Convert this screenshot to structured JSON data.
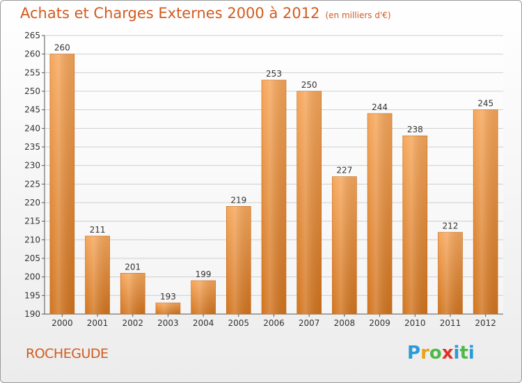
{
  "header": {
    "title": "Achats et Charges Externes 2000 à 2012",
    "unit": "(en milliers d'€)"
  },
  "footer": {
    "municipality": "ROCHEGUDE",
    "logo_letters": [
      "P",
      "r",
      "o",
      "x",
      "i",
      "t",
      "i"
    ]
  },
  "colors": {
    "title": "#d25a1e",
    "bar_top": "#f6a65a",
    "bar_bottom": "#d2741e",
    "grid": "#cfcfcf",
    "axis_text": "#333333"
  },
  "chart_data": {
    "type": "bar",
    "title": "Achats et Charges Externes 2000 à 2012",
    "subtitle": "(en milliers d'€)",
    "xlabel": "",
    "ylabel": "",
    "categories": [
      "2000",
      "2001",
      "2002",
      "2003",
      "2004",
      "2005",
      "2006",
      "2007",
      "2008",
      "2009",
      "2010",
      "2011",
      "2012"
    ],
    "values": [
      260,
      211,
      201,
      193,
      199,
      219,
      253,
      250,
      227,
      244,
      238,
      212,
      245
    ],
    "data_labels": [
      "260",
      "211",
      "201",
      "193",
      "199",
      "219",
      "253",
      "250",
      "227",
      "244",
      "238",
      "212",
      "245"
    ],
    "yticks": [
      "190",
      "195",
      "200",
      "205",
      "210",
      "215",
      "220",
      "225",
      "230",
      "235",
      "240",
      "245",
      "250",
      "255",
      "260",
      "265"
    ],
    "ylim": [
      190,
      265
    ],
    "grid": true,
    "legend": "none"
  }
}
